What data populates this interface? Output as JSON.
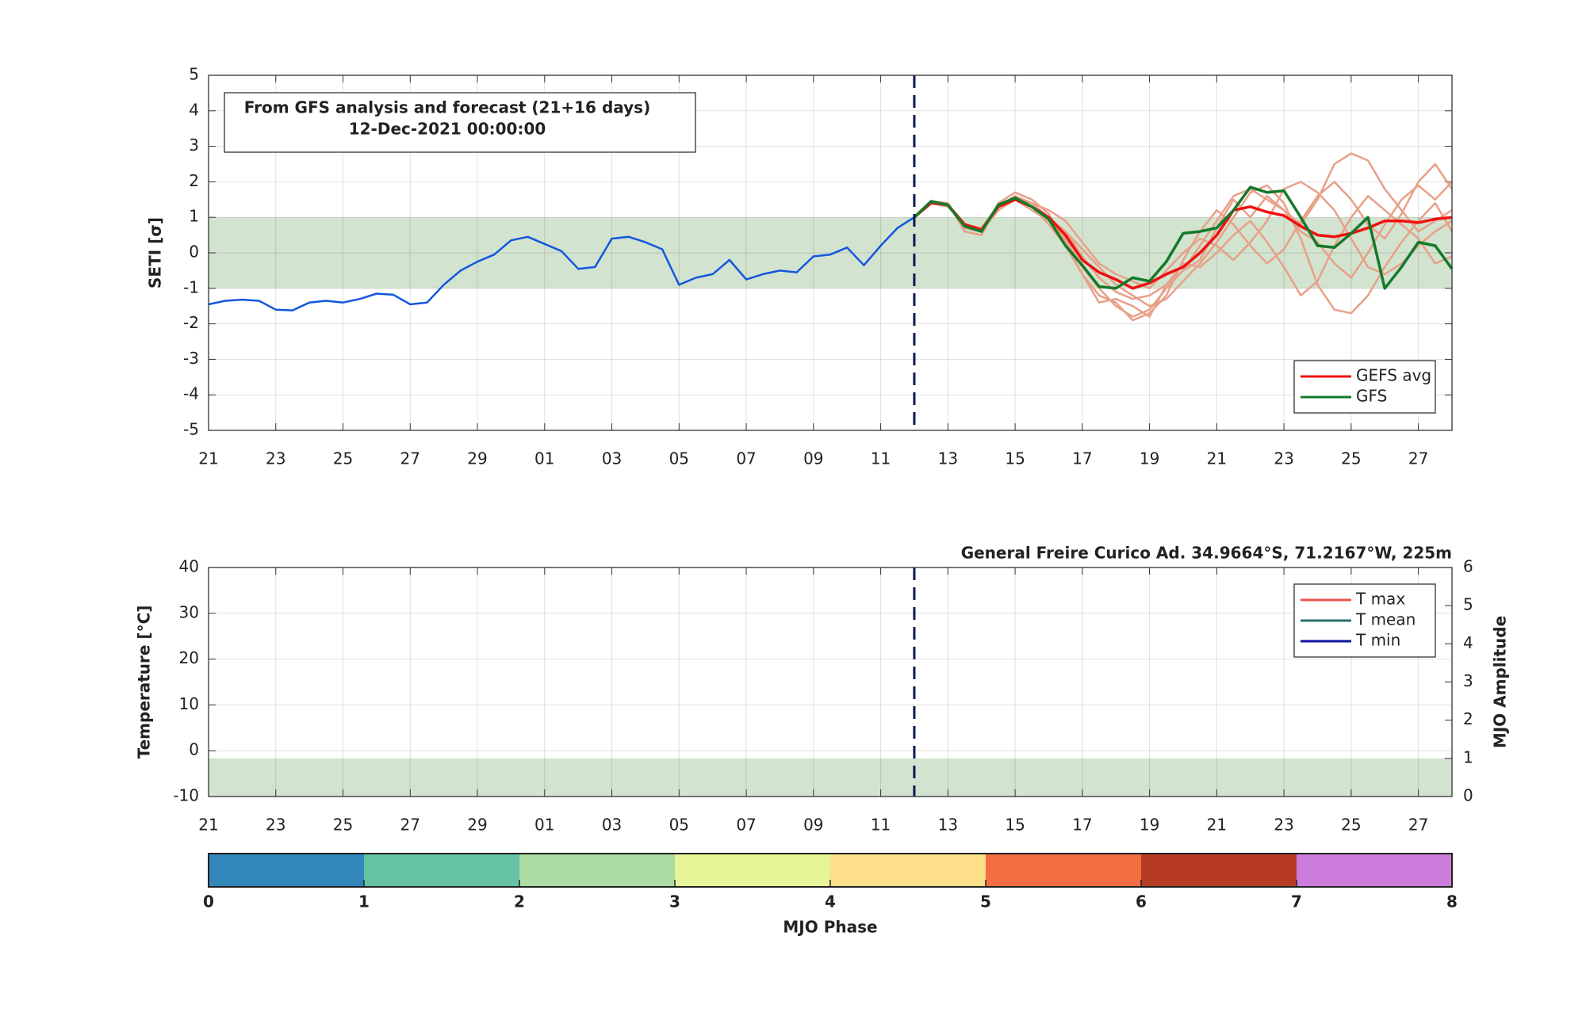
{
  "chart_data": [
    {
      "type": "line",
      "ylabel": "SETI [σ]",
      "annotation": [
        "From GFS analysis and forecast (21+16 days)",
        "12-Dec-2021 00:00:00"
      ],
      "xlim": [
        0,
        37
      ],
      "xticks": [
        {
          "value": 0,
          "label": "21"
        },
        {
          "value": 2,
          "label": "23"
        },
        {
          "value": 4,
          "label": "25"
        },
        {
          "value": 6,
          "label": "27"
        },
        {
          "value": 8,
          "label": "29"
        },
        {
          "value": 10,
          "label": "01"
        },
        {
          "value": 12,
          "label": "03"
        },
        {
          "value": 14,
          "label": "05"
        },
        {
          "value": 16,
          "label": "07"
        },
        {
          "value": 18,
          "label": "09"
        },
        {
          "value": 20,
          "label": "11"
        },
        {
          "value": 22,
          "label": "13"
        },
        {
          "value": 24,
          "label": "15"
        },
        {
          "value": 26,
          "label": "17"
        },
        {
          "value": 28,
          "label": "19"
        },
        {
          "value": 30,
          "label": "21"
        },
        {
          "value": 32,
          "label": "23"
        },
        {
          "value": 34,
          "label": "25"
        },
        {
          "value": 36,
          "label": "27"
        }
      ],
      "ylim": [
        -5,
        5
      ],
      "yticks": [
        -5,
        -4,
        -3,
        -2,
        -1,
        0,
        1,
        2,
        3,
        4,
        5
      ],
      "grid": true,
      "band": {
        "range": [
          -1,
          1
        ],
        "color": "#d2e3cf"
      },
      "vline": {
        "x": 21,
        "color": "#0b1a4f"
      },
      "legend": "lower right",
      "series": [
        {
          "color": "#e8a088",
          "x": [
            21,
            21.5,
            22,
            22.5,
            23,
            23.5,
            24,
            24.5,
            25,
            25.5,
            26,
            26.5,
            27,
            27.5,
            28,
            28.5,
            29,
            29.5,
            30,
            30.5,
            31,
            31.5,
            32,
            32.5,
            33,
            33.5,
            34,
            34.5,
            35,
            35.5,
            36,
            36.5,
            37
          ],
          "values": [
            1.0,
            1.4,
            1.35,
            0.7,
            0.6,
            1.3,
            1.6,
            1.4,
            1.0,
            0.4,
            -0.4,
            -1.0,
            -1.5,
            -1.8,
            -1.6,
            -1.0,
            -0.5,
            0.2,
            0.9,
            1.6,
            1.8,
            1.5,
            1.2,
            0.8,
            1.5,
            2.5,
            2.8,
            2.6,
            1.8,
            1.2,
            0.6,
            0.9,
            1.2
          ]
        },
        {
          "color": "#e8a088",
          "x": [
            21,
            21.5,
            22,
            22.5,
            23,
            23.5,
            24,
            24.5,
            25,
            25.5,
            26,
            26.5,
            27,
            27.5,
            28,
            28.5,
            29,
            29.5,
            30,
            30.5,
            31,
            31.5,
            32,
            32.5,
            33,
            33.5,
            34,
            34.5,
            35,
            35.5,
            36,
            36.5,
            37
          ],
          "values": [
            1.0,
            1.45,
            1.3,
            0.8,
            0.7,
            1.35,
            1.5,
            1.2,
            0.9,
            0.6,
            0.1,
            -0.4,
            -0.9,
            -1.2,
            -1.5,
            -1.3,
            -0.8,
            -0.3,
            0.3,
            1.0,
            1.7,
            1.9,
            1.4,
            0.4,
            -0.9,
            -1.6,
            -1.7,
            -1.2,
            -0.4,
            0.3,
            0.9,
            1.4,
            0.6
          ]
        },
        {
          "color": "#e8a088",
          "x": [
            21,
            21.5,
            22,
            22.5,
            23,
            23.5,
            24,
            24.5,
            25,
            25.5,
            26,
            26.5,
            27,
            27.5,
            28,
            28.5,
            29,
            29.5,
            30,
            30.5,
            31,
            31.5,
            32,
            32.5,
            33,
            33.5,
            34,
            34.5,
            35,
            35.5,
            36,
            36.5,
            37
          ],
          "values": [
            1.0,
            1.4,
            1.4,
            0.6,
            0.5,
            1.4,
            1.7,
            1.5,
            1.1,
            0.3,
            -0.6,
            -1.2,
            -1.4,
            -1.9,
            -1.7,
            -1.2,
            -0.2,
            0.6,
            1.2,
            0.8,
            0.2,
            -0.3,
            0.1,
            0.9,
            1.6,
            2.0,
            1.5,
            0.8,
            0.4,
            1.1,
            2.0,
            2.5,
            1.8
          ]
        },
        {
          "color": "#e8a088",
          "x": [
            21,
            21.5,
            22,
            22.5,
            23,
            23.5,
            24,
            24.5,
            25,
            25.5,
            26,
            26.5,
            27,
            27.5,
            28,
            28.5,
            29,
            29.5,
            30,
            30.5,
            31,
            31.5,
            32,
            32.5,
            33,
            33.5,
            34,
            34.5,
            35,
            35.5,
            36,
            36.5,
            37
          ],
          "values": [
            1.0,
            1.4,
            1.3,
            0.8,
            0.6,
            1.2,
            1.5,
            1.4,
            1.2,
            0.9,
            0.3,
            -0.3,
            -0.6,
            -0.8,
            -1.0,
            -0.5,
            0.0,
            0.4,
            0.2,
            -0.2,
            0.3,
            0.9,
            1.8,
            2.0,
            1.7,
            1.2,
            0.4,
            -0.4,
            -0.6,
            -0.3,
            0.2,
            0.6,
            0.9
          ]
        },
        {
          "color": "#e8a088",
          "x": [
            21,
            21.5,
            22,
            22.5,
            23,
            23.5,
            24,
            24.5,
            25,
            25.5,
            26,
            26.5,
            27,
            27.5,
            28,
            28.5,
            29,
            29.5,
            30,
            30.5,
            31,
            31.5,
            32,
            32.5,
            33,
            33.5,
            34,
            34.5,
            35,
            35.5,
            36,
            36.5,
            37
          ],
          "values": [
            1.0,
            1.45,
            1.4,
            0.7,
            0.65,
            1.3,
            1.6,
            1.3,
            0.8,
            0.2,
            -0.6,
            -1.4,
            -1.3,
            -1.5,
            -1.8,
            -0.9,
            -0.5,
            -0.2,
            0.7,
            1.5,
            1.0,
            1.6,
            1.2,
            0.6,
            0.3,
            -0.3,
            -0.7,
            0.0,
            0.8,
            1.5,
            1.9,
            1.5,
            2.0
          ]
        },
        {
          "color": "#e8a088",
          "x": [
            21,
            21.5,
            22,
            22.5,
            23,
            23.5,
            24,
            24.5,
            25,
            25.5,
            26,
            26.5,
            27,
            27.5,
            28,
            28.5,
            29,
            29.5,
            30,
            30.5,
            31,
            31.5,
            32,
            32.5,
            33,
            33.5,
            34,
            34.5,
            35,
            35.5,
            36,
            36.5,
            37
          ],
          "values": [
            1.0,
            1.4,
            1.35,
            0.75,
            0.6,
            1.35,
            1.5,
            1.3,
            1.0,
            0.6,
            -0.1,
            -0.7,
            -1.1,
            -1.3,
            -1.2,
            -0.9,
            -0.3,
            -0.4,
            0.0,
            0.5,
            0.9,
            0.3,
            -0.4,
            -1.2,
            -0.8,
            0.2,
            1.0,
            1.6,
            1.2,
            0.8,
            0.4,
            -0.3,
            -0.1
          ]
        },
        {
          "color": "#1456e0",
          "x": [
            0,
            0.5,
            1,
            1.5,
            2,
            2.5,
            3,
            3.5,
            4,
            4.5,
            5,
            5.5,
            6,
            6.5,
            7,
            7.5,
            8,
            8.5,
            9,
            9.5,
            10,
            10.5,
            11,
            11.5,
            12,
            12.5,
            13,
            13.5,
            14,
            14.5,
            15,
            15.5,
            16,
            16.5,
            17,
            17.5,
            18,
            18.5,
            19,
            19.5,
            20,
            20.5,
            21
          ],
          "values": [
            -1.45,
            -1.35,
            -1.32,
            -1.35,
            -1.6,
            -1.62,
            -1.4,
            -1.35,
            -1.4,
            -1.3,
            -1.15,
            -1.18,
            -1.45,
            -1.4,
            -0.9,
            -0.5,
            -0.25,
            -0.05,
            0.35,
            0.45,
            0.25,
            0.05,
            -0.45,
            -0.4,
            0.4,
            0.45,
            0.3,
            0.1,
            -0.9,
            -0.7,
            -0.6,
            -0.2,
            -0.75,
            -0.6,
            -0.5,
            -0.55,
            -0.1,
            -0.05,
            0.15,
            -0.35,
            0.2,
            0.7,
            1.0
          ]
        },
        {
          "name": "GEFS avg",
          "color": "#f01010",
          "x": [
            21,
            21.5,
            22,
            22.5,
            23,
            23.5,
            24,
            24.5,
            25,
            25.5,
            26,
            26.5,
            27,
            27.5,
            28,
            28.5,
            29,
            29.5,
            30,
            30.5,
            31,
            31.5,
            32,
            32.5,
            33,
            33.5,
            34,
            34.5,
            35,
            35.5,
            36,
            36.5,
            37
          ],
          "values": [
            1.0,
            1.4,
            1.35,
            0.8,
            0.65,
            1.3,
            1.5,
            1.3,
            1.0,
            0.5,
            -0.2,
            -0.55,
            -0.75,
            -1.0,
            -0.85,
            -0.6,
            -0.4,
            0.0,
            0.5,
            1.2,
            1.3,
            1.15,
            1.05,
            0.75,
            0.5,
            0.45,
            0.55,
            0.7,
            0.9,
            0.9,
            0.85,
            0.95,
            1.0
          ]
        },
        {
          "name": "GFS",
          "color": "#137a2a",
          "x": [
            21,
            21.5,
            22,
            22.5,
            23,
            23.5,
            24,
            24.5,
            25,
            25.5,
            26,
            26.5,
            27,
            27.5,
            28,
            28.5,
            29,
            29.5,
            30,
            30.5,
            31,
            31.5,
            32,
            32.5,
            33,
            33.5,
            34,
            34.5,
            35,
            35.5,
            36,
            36.5,
            37
          ],
          "values": [
            1.0,
            1.45,
            1.35,
            0.75,
            0.6,
            1.35,
            1.55,
            1.3,
            0.95,
            0.2,
            -0.35,
            -0.95,
            -1.0,
            -0.7,
            -0.8,
            -0.25,
            0.55,
            0.6,
            0.7,
            1.2,
            1.85,
            1.7,
            1.75,
            1.0,
            0.2,
            0.15,
            0.55,
            1.0,
            -1.0,
            -0.4,
            0.3,
            0.2,
            -0.45
          ]
        }
      ]
    },
    {
      "type": "line",
      "title": "General Freire Curico Ad. 34.9664°S, 71.2167°W, 225m",
      "ylabel": "Temperature [°C]",
      "y2label": "MJO Amplitude",
      "xlim": [
        0,
        37
      ],
      "xticks": [
        {
          "value": 0,
          "label": "21"
        },
        {
          "value": 2,
          "label": "23"
        },
        {
          "value": 4,
          "label": "25"
        },
        {
          "value": 6,
          "label": "27"
        },
        {
          "value": 8,
          "label": "29"
        },
        {
          "value": 10,
          "label": "01"
        },
        {
          "value": 12,
          "label": "03"
        },
        {
          "value": 14,
          "label": "05"
        },
        {
          "value": 16,
          "label": "07"
        },
        {
          "value": 18,
          "label": "09"
        },
        {
          "value": 20,
          "label": "11"
        },
        {
          "value": 22,
          "label": "13"
        },
        {
          "value": 24,
          "label": "15"
        },
        {
          "value": 26,
          "label": "17"
        },
        {
          "value": 28,
          "label": "19"
        },
        {
          "value": 30,
          "label": "21"
        },
        {
          "value": 32,
          "label": "23"
        },
        {
          "value": 34,
          "label": "25"
        },
        {
          "value": 36,
          "label": "27"
        }
      ],
      "ylim": [
        -10,
        40
      ],
      "yticks": [
        -10,
        0,
        10,
        20,
        30,
        40
      ],
      "y2lim": [
        0,
        6
      ],
      "y2ticks": [
        0,
        1,
        2,
        3,
        4,
        5,
        6
      ],
      "grid": true,
      "band": {
        "range": [
          0,
          1
        ],
        "axis": "y2",
        "color": "#d2e3cf"
      },
      "vline": {
        "x": 21,
        "color": "#0b1a4f"
      },
      "legend": "upper right",
      "series": [
        {
          "name": "T max",
          "color": "#f05050",
          "values": []
        },
        {
          "name": "T mean",
          "color": "#2a7070",
          "values": []
        },
        {
          "name": "T min",
          "color": "#1010a0",
          "values": []
        }
      ]
    },
    {
      "type": "colorbar",
      "label": "MJO Phase",
      "lim": [
        0,
        8
      ],
      "ticks": [
        0,
        1,
        2,
        3,
        4,
        5,
        6,
        7,
        8
      ],
      "colors": [
        "#3288bd",
        "#66c2a5",
        "#abdda4",
        "#e6f598",
        "#fee08b",
        "#f46d43",
        "#b73b22",
        "#cc7ddb"
      ]
    }
  ]
}
